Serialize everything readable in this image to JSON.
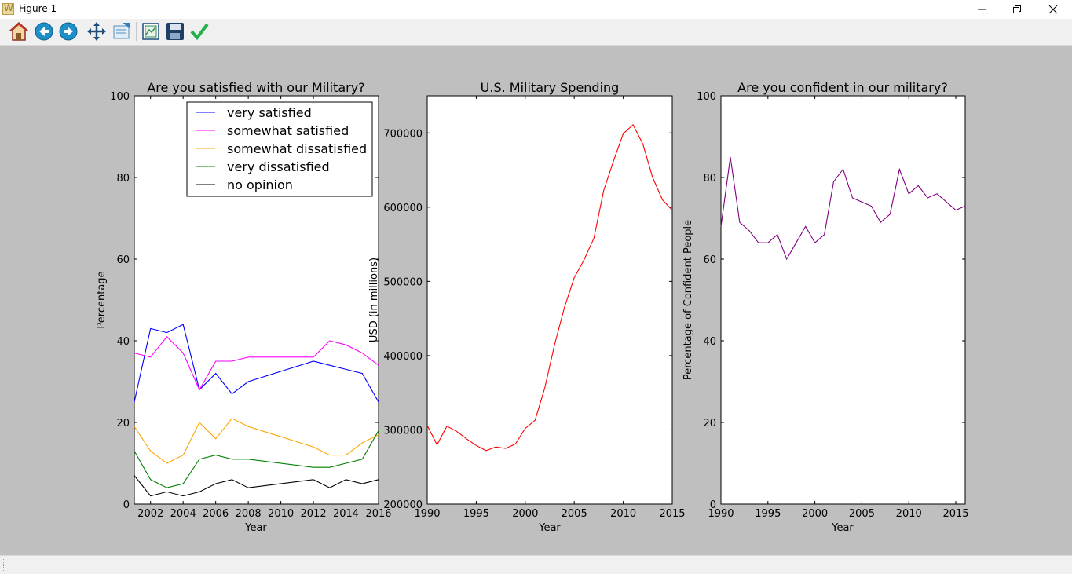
{
  "window": {
    "title": "Figure 1"
  },
  "toolbar": {
    "buttons": [
      {
        "name": "home",
        "icon": "home-icon"
      },
      {
        "name": "back",
        "icon": "back-arrow-icon"
      },
      {
        "name": "forward",
        "icon": "forward-arrow-icon"
      },
      {
        "name": "pan",
        "icon": "move-arrows-icon"
      },
      {
        "name": "zoom",
        "icon": "zoom-rect-icon"
      },
      {
        "name": "subplots",
        "icon": "subplots-config-icon"
      },
      {
        "name": "save",
        "icon": "floppy-disk-icon"
      },
      {
        "name": "edit",
        "icon": "checkmark-icon"
      }
    ]
  },
  "chart_data": [
    {
      "type": "line",
      "title": "Are you satisfied with our Military?",
      "xlabel": "Year",
      "ylabel": "Percentage",
      "xlim": [
        2001,
        2016
      ],
      "ylim": [
        0,
        100
      ],
      "xticks": [
        2002,
        2004,
        2006,
        2008,
        2010,
        2012,
        2014,
        2016
      ],
      "yticks": [
        0,
        20,
        40,
        60,
        80,
        100
      ],
      "legend": "top-right",
      "x": [
        2001,
        2002,
        2003,
        2004,
        2005,
        2006,
        2007,
        2008,
        2012,
        2013,
        2014,
        2015,
        2016
      ],
      "series": [
        {
          "name": "very satisfied",
          "color": "#0000ff",
          "values": [
            25,
            43,
            42,
            44,
            28,
            32,
            27,
            30,
            35,
            34,
            33,
            32,
            25
          ]
        },
        {
          "name": "somewhat satisfied",
          "color": "#ff00ff",
          "values": [
            37,
            36,
            41,
            37,
            28,
            35,
            35,
            36,
            36,
            40,
            39,
            37,
            34
          ]
        },
        {
          "name": "somewhat dissatisfied",
          "color": "#ffa500",
          "values": [
            19,
            13,
            10,
            12,
            20,
            16,
            21,
            19,
            14,
            12,
            12,
            15,
            17
          ]
        },
        {
          "name": "very dissatisfied",
          "color": "#008000",
          "values": [
            13,
            6,
            4,
            5,
            11,
            12,
            11,
            11,
            9,
            9,
            10,
            11,
            18
          ]
        },
        {
          "name": "no opinion",
          "color": "#000000",
          "values": [
            7,
            2,
            3,
            2,
            3,
            5,
            6,
            4,
            6,
            4,
            6,
            5,
            6
          ]
        }
      ]
    },
    {
      "type": "line",
      "title": "U.S. Military Spending",
      "xlabel": "Year",
      "ylabel": "USD (in millions)",
      "xlim": [
        1990,
        2015
      ],
      "ylim": [
        200000,
        750000
      ],
      "xticks": [
        1990,
        1995,
        2000,
        2005,
        2010,
        2015
      ],
      "yticks": [
        200000,
        300000,
        400000,
        500000,
        600000,
        700000
      ],
      "x": [
        1990,
        1991,
        1992,
        1993,
        1994,
        1995,
        1996,
        1997,
        1998,
        1999,
        2000,
        2001,
        2002,
        2003,
        2004,
        2005,
        2006,
        2007,
        2008,
        2009,
        2010,
        2011,
        2012,
        2013,
        2014,
        2015
      ],
      "series": [
        {
          "color": "#ff0000",
          "values": [
            306000,
            280000,
            305000,
            298000,
            288000,
            279000,
            272000,
            277000,
            275000,
            281000,
            302000,
            313000,
            357000,
            415000,
            465000,
            505000,
            529000,
            558000,
            622000,
            662000,
            699000,
            711000,
            685000,
            640000,
            610000,
            596000
          ]
        }
      ]
    },
    {
      "type": "line",
      "title": "Are you confident in our military?",
      "xlabel": "Year",
      "ylabel": "Percentage of Confident People",
      "xlim": [
        1990,
        2016
      ],
      "ylim": [
        0,
        100
      ],
      "xticks": [
        1990,
        1995,
        2000,
        2005,
        2010,
        2015
      ],
      "yticks": [
        0,
        20,
        40,
        60,
        80,
        100
      ],
      "x": [
        1990,
        1991,
        1992,
        1993,
        1994,
        1995,
        1996,
        1997,
        1998,
        1999,
        2000,
        2001,
        2002,
        2003,
        2004,
        2005,
        2006,
        2007,
        2008,
        2009,
        2010,
        2011,
        2012,
        2013,
        2014,
        2015,
        2016
      ],
      "series": [
        {
          "color": "#800080",
          "values": [
            68,
            85,
            69,
            67,
            64,
            64,
            66,
            60,
            64,
            68,
            64,
            66,
            79,
            82,
            75,
            74,
            73,
            69,
            71,
            82,
            76,
            78,
            75,
            76,
            74,
            72,
            73
          ]
        }
      ]
    }
  ]
}
